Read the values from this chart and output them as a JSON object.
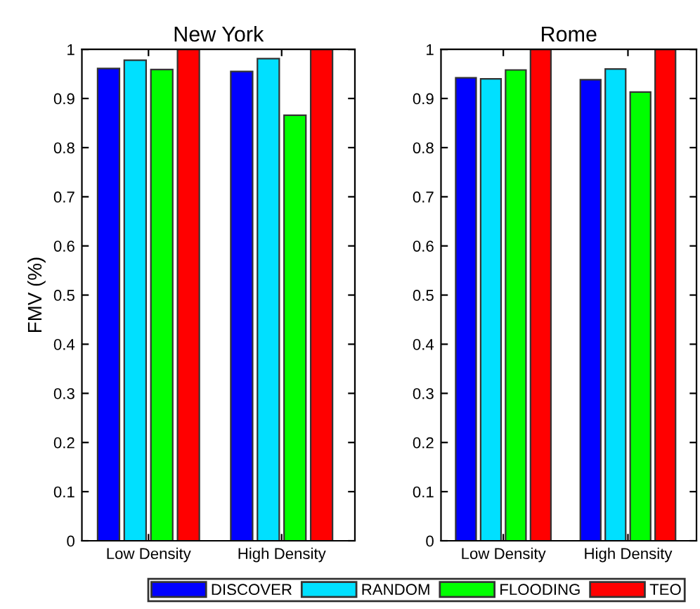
{
  "chart_data": [
    {
      "type": "bar",
      "title": "New York",
      "ylabel": "FMV (%)",
      "categories": [
        "Low Density",
        "High Density"
      ],
      "ylim": [
        0,
        1
      ],
      "yticks": [
        0,
        0.1,
        0.2,
        0.3,
        0.4,
        0.5,
        0.6,
        0.7,
        0.8,
        0.9,
        1
      ],
      "grid": false,
      "legend": "bottom",
      "series": [
        {
          "name": "DISCOVER",
          "color": "#0000ff",
          "values": [
            0.961,
            0.955
          ]
        },
        {
          "name": "RANDOM",
          "color": "#00e0ff",
          "values": [
            0.978,
            0.981
          ]
        },
        {
          "name": "FLOODING",
          "color": "#00ff00",
          "values": [
            0.959,
            0.866
          ]
        },
        {
          "name": "TEO",
          "color": "#ff0000",
          "values": [
            1.0,
            1.0
          ]
        }
      ]
    },
    {
      "type": "bar",
      "title": "Rome",
      "categories": [
        "Low Density",
        "High Density"
      ],
      "ylim": [
        0,
        1
      ],
      "yticks": [
        0,
        0.1,
        0.2,
        0.3,
        0.4,
        0.5,
        0.6,
        0.7,
        0.8,
        0.9,
        1
      ],
      "grid": false,
      "series": [
        {
          "color": "#0000ff",
          "values": [
            0.942,
            0.938
          ]
        },
        {
          "color": "#00e0ff",
          "values": [
            0.94,
            0.96
          ]
        },
        {
          "color": "#00ff00",
          "values": [
            0.958,
            0.913
          ]
        },
        {
          "color": "#ff0000",
          "values": [
            1.0,
            1.0
          ]
        }
      ]
    }
  ]
}
